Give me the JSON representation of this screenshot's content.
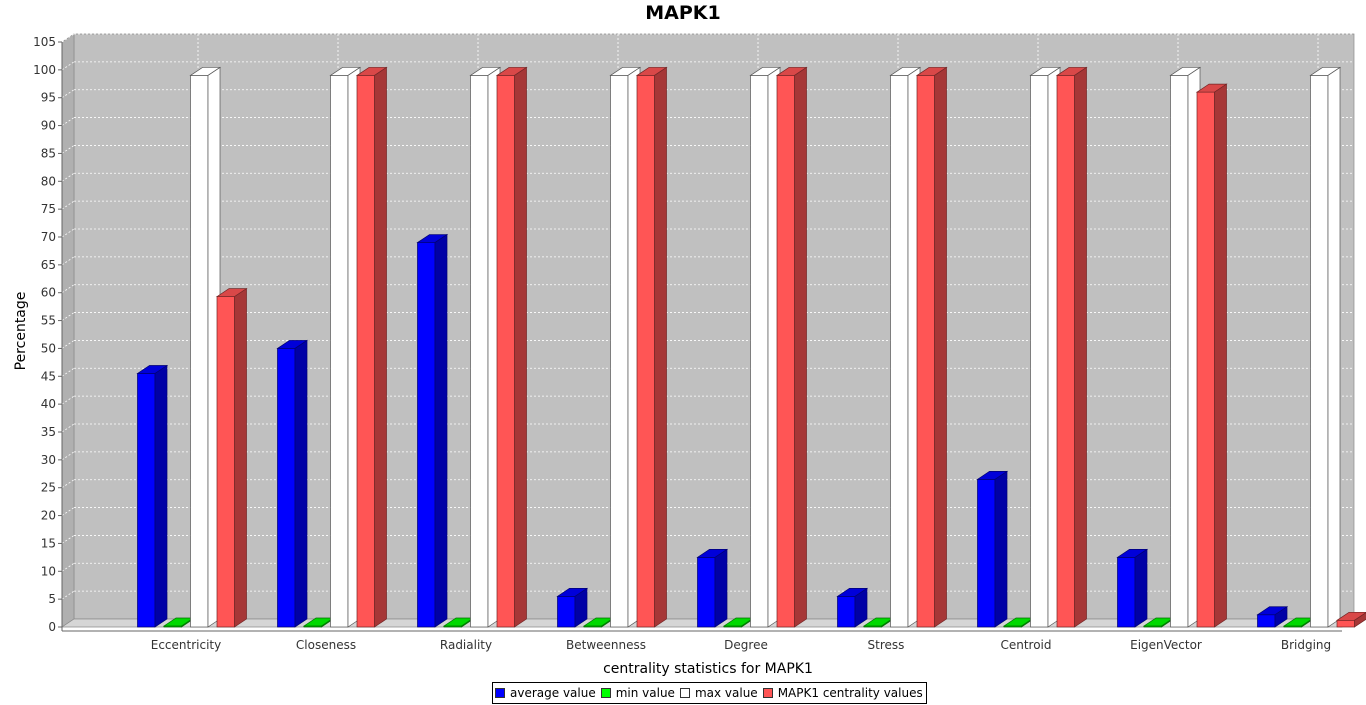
{
  "chart_data": {
    "type": "bar",
    "title": "MAPK1",
    "xlabel": "centrality statistics for MAPK1",
    "ylabel": "Percentage",
    "ylim": [
      0,
      105
    ],
    "yticks": [
      0,
      5,
      10,
      15,
      20,
      25,
      30,
      35,
      40,
      45,
      50,
      55,
      60,
      65,
      70,
      75,
      80,
      85,
      90,
      95,
      100,
      105
    ],
    "grid": true,
    "legend_position": "bottom",
    "three_d": true,
    "categories": [
      "Eccentricity",
      "Closeness",
      "Radiality",
      "Betweenness",
      "Degree",
      "Stress",
      "Centroid",
      "EigenVector",
      "Bridging"
    ],
    "series": [
      {
        "name": "average value",
        "color": "#0000ff",
        "values": [
          45.5,
          50,
          69,
          5.5,
          12.5,
          5.5,
          26.5,
          12.5,
          2.2
        ]
      },
      {
        "name": "min value",
        "color": "#00ff00",
        "values": [
          0,
          0,
          0,
          0,
          0,
          0,
          0,
          0,
          0
        ]
      },
      {
        "name": "max value",
        "color": "#ffffff",
        "values": [
          99,
          99,
          99,
          99,
          99,
          99,
          99,
          99,
          99
        ]
      },
      {
        "name": "MAPK1 centrality values",
        "color": "#ff5555",
        "values": [
          59.3,
          99,
          99,
          99,
          99,
          99,
          99,
          96,
          1.2
        ]
      }
    ]
  }
}
